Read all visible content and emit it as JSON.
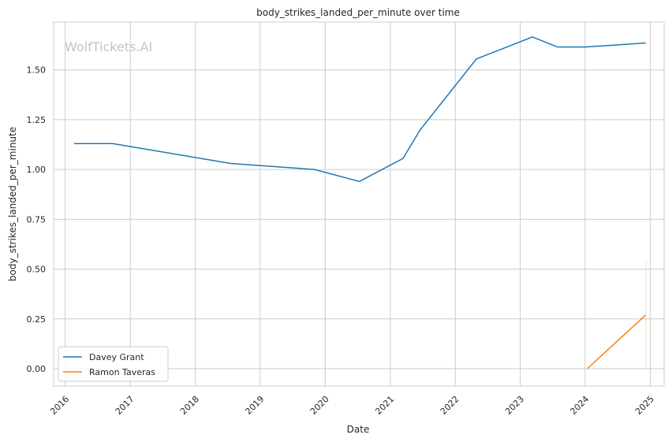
{
  "chart_data": {
    "type": "line",
    "title": "body_strikes_landed_per_minute over time",
    "xlabel": "Date",
    "ylabel": "body_strikes_landed_per_minute",
    "watermark": "WolfTickets.AI",
    "x_ticks": [
      "2016",
      "2017",
      "2018",
      "2019",
      "2020",
      "2021",
      "2022",
      "2023",
      "2024",
      "2025"
    ],
    "y_ticks": [
      "0.00",
      "0.25",
      "0.50",
      "0.75",
      "1.00",
      "1.25",
      "1.50"
    ],
    "xlim": [
      "2015-10-28",
      "2025-03-20"
    ],
    "ylim": [
      -0.087,
      1.74
    ],
    "grid": true,
    "legend_position": "lower-left",
    "series": [
      {
        "name": "Davey Grant",
        "color": "#1f77b4",
        "points": [
          {
            "x": "2016-02-20",
            "y": 1.13
          },
          {
            "x": "2016-09-24",
            "y": 1.13
          },
          {
            "x": "2018-07-21",
            "y": 1.03
          },
          {
            "x": "2019-11-02",
            "y": 1.0
          },
          {
            "x": "2020-07-11",
            "y": 0.94
          },
          {
            "x": "2021-03-13",
            "y": 1.055
          },
          {
            "x": "2021-06-19",
            "y": 1.2
          },
          {
            "x": "2022-04-30",
            "y": 1.555
          },
          {
            "x": "2023-03-11",
            "y": 1.665
          },
          {
            "x": "2023-07-29",
            "y": 1.615
          },
          {
            "x": "2024-01-06",
            "y": 1.615
          },
          {
            "x": "2024-12-07",
            "y": 1.635
          }
        ]
      },
      {
        "name": "Ramon Taveras",
        "color": "#ff7f0e",
        "points": [
          {
            "x": "2024-01-13",
            "y": 0.0
          },
          {
            "x": "2024-12-07",
            "y": 0.27
          }
        ],
        "band": {
          "x": "2024-12-07",
          "low": 0.0,
          "high": 0.54
        }
      }
    ]
  }
}
